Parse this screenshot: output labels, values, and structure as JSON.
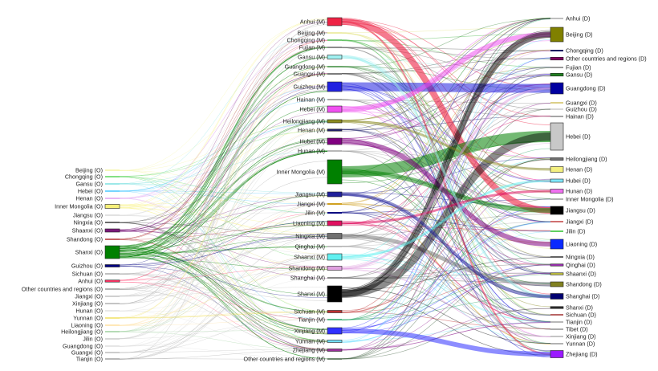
{
  "origin": [
    {
      "label": "Beijing (O)",
      "color": "#f4f4a0"
    },
    {
      "label": "Chongqing (O)",
      "color": "#5cd65c"
    },
    {
      "label": "Gansu (O)",
      "color": "#7be0e0"
    },
    {
      "label": "Hebei (O)",
      "color": "#49c7ff"
    },
    {
      "label": "Henan (O)",
      "color": "#e0a0f0"
    },
    {
      "label": "Inner Mongolia (O)",
      "color": "#f7f07a"
    },
    {
      "label": "Jiangsu (O)",
      "color": "#d8d8d8"
    },
    {
      "label": "Ningxia (O)",
      "color": "#3a3a3a"
    },
    {
      "label": "Shaanxi (O)",
      "color": "#7a1a7a"
    },
    {
      "label": "Shandong (O)",
      "color": "#b03030"
    },
    {
      "label": "Shanxi (O)",
      "color": "#008000"
    },
    {
      "label": "Guizhou (O)",
      "color": "#000080"
    },
    {
      "label": "Sichuan (O)",
      "color": "#aaaaaa"
    },
    {
      "label": "Anhui (O)",
      "color": "#ff3366"
    },
    {
      "label": "Other countries and regions (O)",
      "color": "#999999"
    },
    {
      "label": "Jiangxi (O)",
      "color": "#c0c0c0"
    },
    {
      "label": "Xinjiang (O)",
      "color": "#b0b0b0"
    },
    {
      "label": "Hunan (O)",
      "color": "#e0e0e0"
    },
    {
      "label": "Yunnan (O)",
      "color": "#f0e060"
    },
    {
      "label": "Liaoning (O)",
      "color": "#ffe0a0"
    },
    {
      "label": "Heilongjiang (O)",
      "color": "#9ecf9e"
    },
    {
      "label": "Jilin (O)",
      "color": "#cccccc"
    },
    {
      "label": "Guangdong (O)",
      "color": "#dddddd"
    },
    {
      "label": "Guangxi (O)",
      "color": "#bbbbbb"
    },
    {
      "label": "Tianjin (O)",
      "color": "#a0a0a0"
    }
  ],
  "middle": [
    {
      "label": "Anhui (M)",
      "color": "#ee2244"
    },
    {
      "label": "Beijing (M)",
      "color": "#e8e890"
    },
    {
      "label": "Chongqing (M)",
      "color": "#4ab84a"
    },
    {
      "label": "Fujian (M)",
      "color": "#666666"
    },
    {
      "label": "Gansu (M)",
      "color": "#9ff0f0"
    },
    {
      "label": "Guangdong (M)",
      "color": "#3a8a3a"
    },
    {
      "label": "Guangxi (M)",
      "color": "#505050"
    },
    {
      "label": "Guizhou (M)",
      "color": "#2020e0"
    },
    {
      "label": "Hainan (M)",
      "color": "#888888"
    },
    {
      "label": "Hebei (M)",
      "color": "#f050f0"
    },
    {
      "label": "Heilongjiang (M)",
      "color": "#8a8a20"
    },
    {
      "label": "Henan (M)",
      "color": "#20206a"
    },
    {
      "label": "Hubei (M)",
      "color": "#800080"
    },
    {
      "label": "Hunan (M)",
      "color": "#a0a0a0"
    },
    {
      "label": "Inner Mongolia (M)",
      "color": "#008000"
    },
    {
      "label": "Jiangsu (M)",
      "color": "#20209a"
    },
    {
      "label": "Jiangxi (M)",
      "color": "#d0a020"
    },
    {
      "label": "Jilin (M)",
      "color": "#000080"
    },
    {
      "label": "Liaoning (M)",
      "color": "#e01060"
    },
    {
      "label": "Ningxia (M)",
      "color": "#707070"
    },
    {
      "label": "Qinghai (M)",
      "color": "#a8a8a8"
    },
    {
      "label": "Shaanxi (M)",
      "color": "#60f0f0"
    },
    {
      "label": "Shandong (M)",
      "color": "#e0a0e0"
    },
    {
      "label": "Shanghai (M)",
      "color": "#606060"
    },
    {
      "label": "Shanxi (M)",
      "color": "#000000"
    },
    {
      "label": "Sichuan (M)",
      "color": "#c03030"
    },
    {
      "label": "Tianjin (M)",
      "color": "#20a060"
    },
    {
      "label": "Xinjiang (M)",
      "color": "#3030ff"
    },
    {
      "label": "Yunnan (M)",
      "color": "#70e0ff"
    },
    {
      "label": "Zhejiang (M)",
      "color": "#9a309a"
    },
    {
      "label": "Other countries and regions (M)",
      "color": "#406040"
    }
  ],
  "destination": [
    {
      "label": "Anhui (D)",
      "color": "#aaaaaa"
    },
    {
      "label": "Beijing (D)",
      "color": "#808000"
    },
    {
      "label": "Chongqing (D)",
      "color": "#000060"
    },
    {
      "label": "Other countries and regions (D)",
      "color": "#800060"
    },
    {
      "label": "Fujian (D)",
      "color": "#777777"
    },
    {
      "label": "Gansu (D)",
      "color": "#208020"
    },
    {
      "label": "Guangdong (D)",
      "color": "#0000a0"
    },
    {
      "label": "Guangxi (D)",
      "color": "#d0c060"
    },
    {
      "label": "Guizhou (D)",
      "color": "#cccccc"
    },
    {
      "label": "Hainan (D)",
      "color": "#888888"
    },
    {
      "label": "Hebei (D)",
      "color": "#c8c8c8"
    },
    {
      "label": "Heilongjiang (D)",
      "color": "#707070"
    },
    {
      "label": "Henan (D)",
      "color": "#f4f080"
    },
    {
      "label": "Hubei (D)",
      "color": "#80e8ff"
    },
    {
      "label": "Hunan (D)",
      "color": "#f070f0"
    },
    {
      "label": "Inner Mongolia (D)",
      "color": "#999999"
    },
    {
      "label": "Jiangsu (D)",
      "color": "#000000"
    },
    {
      "label": "Jiangxi (D)",
      "color": "#c04040"
    },
    {
      "label": "Jilin (D)",
      "color": "#60d060"
    },
    {
      "label": "Liaoning (D)",
      "color": "#0a2aff"
    },
    {
      "label": "Ningxia (D)",
      "color": "#303030"
    },
    {
      "label": "Qinghai (D)",
      "color": "#9a30b0"
    },
    {
      "label": "Shaanxi (D)",
      "color": "#c0c040"
    },
    {
      "label": "Shandong (D)",
      "color": "#808020"
    },
    {
      "label": "Shanghai (D)",
      "color": "#000070"
    },
    {
      "label": "Shanxi (D)",
      "color": "#2a2a2a"
    },
    {
      "label": "Sichuan (D)",
      "color": "#a03030"
    },
    {
      "label": "Tianjin (D)",
      "color": "#a0a0a0"
    },
    {
      "label": "Tibet (D)",
      "color": "#909090"
    },
    {
      "label": "Xinjiang (D)",
      "color": "#b0b0b0"
    },
    {
      "label": "Yunnan (D)",
      "color": "#999999"
    },
    {
      "label": "Zhejiang (D)",
      "color": "#9a1aff"
    }
  ]
}
